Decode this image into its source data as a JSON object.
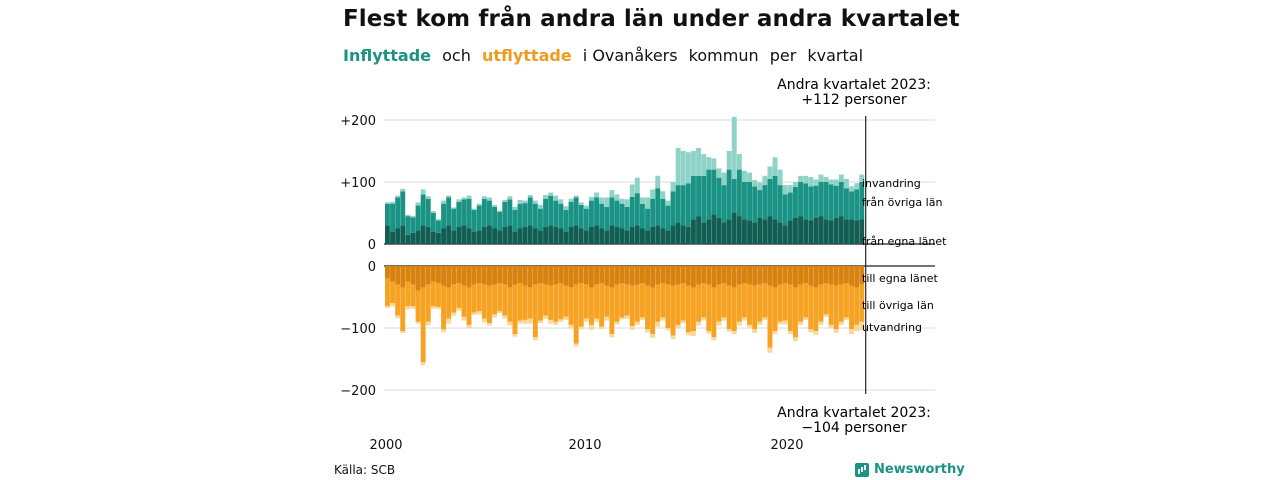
{
  "title": "Flest kom från andra län under andra kvartalet",
  "subtitle": {
    "part1": "Inflyttade",
    "part2": "och",
    "part3": "utflyttade",
    "part4": "i Ovanåkers",
    "part5": "kommun",
    "part6": "per",
    "part7": "kvartal"
  },
  "source": "Källa: SCB",
  "brand": "Newsworthy",
  "colors": {
    "in_own": "#125e52",
    "in_other": "#1a9384",
    "in_abroad": "#8fd3c8",
    "out_own": "#d9820f",
    "out_other": "#f6a324",
    "out_abroad": "#fbd79b"
  },
  "chart_data": {
    "type": "bar",
    "stacked": true,
    "x_start": "2000 Q1",
    "x_end": "2023 Q2",
    "x_ticks": [
      "2000",
      "2010",
      "2020"
    ],
    "ylim": [
      -220,
      210
    ],
    "y_ticks": [
      "+200",
      "+100",
      "0",
      "0",
      "−100",
      "−200"
    ],
    "annotations": {
      "top_label_1": "Andra kvartalet 2023:",
      "top_label_2": "+112 personer",
      "bottom_label_1": "Andra kvartalet 2023:",
      "bottom_label_2": "−104 personer"
    },
    "series_labels": {
      "in_abroad": "invandring",
      "in_other": "från övriga län",
      "in_own": "från egna länet",
      "out_own": "till egna länet",
      "out_other": "till övriga län",
      "out_abroad": "utvandring"
    },
    "inflow": {
      "own_county": [
        30,
        20,
        25,
        30,
        15,
        18,
        22,
        30,
        28,
        20,
        18,
        25,
        30,
        22,
        28,
        30,
        25,
        20,
        22,
        28,
        30,
        25,
        22,
        28,
        30,
        20,
        25,
        28,
        30,
        25,
        22,
        28,
        30,
        28,
        25,
        20,
        28,
        30,
        25,
        22,
        28,
        30,
        25,
        22,
        30,
        28,
        25,
        22,
        28,
        30,
        25,
        22,
        28,
        30,
        25,
        22,
        30,
        35,
        30,
        28,
        40,
        45,
        35,
        40,
        48,
        42,
        35,
        40,
        50,
        45,
        40,
        38,
        35,
        42,
        40,
        45,
        40,
        35,
        30,
        38,
        42,
        45,
        40,
        38,
        42,
        45,
        40,
        38,
        42,
        45,
        40,
        40,
        38,
        40
      ],
      "other_county": [
        35,
        45,
        50,
        55,
        30,
        25,
        40,
        50,
        45,
        30,
        20,
        40,
        45,
        35,
        40,
        42,
        48,
        35,
        40,
        45,
        40,
        35,
        30,
        40,
        42,
        35,
        40,
        38,
        45,
        40,
        35,
        45,
        48,
        42,
        40,
        35,
        40,
        45,
        38,
        35,
        42,
        45,
        40,
        38,
        45,
        42,
        40,
        38,
        48,
        52,
        40,
        35,
        45,
        60,
        48,
        40,
        55,
        60,
        65,
        70,
        70,
        65,
        75,
        80,
        72,
        65,
        60,
        80,
        55,
        75,
        60,
        62,
        58,
        45,
        55,
        60,
        70,
        60,
        50,
        45,
        50,
        55,
        58,
        55,
        52,
        55,
        60,
        58,
        52,
        55,
        50,
        45,
        50,
        60
      ],
      "abroad": [
        2,
        3,
        3,
        4,
        2,
        2,
        5,
        8,
        4,
        3,
        2,
        5,
        3,
        2,
        4,
        3,
        5,
        2,
        3,
        4,
        5,
        3,
        2,
        3,
        5,
        5,
        6,
        4,
        4,
        5,
        6,
        6,
        5,
        8,
        7,
        6,
        5,
        3,
        4,
        5,
        6,
        8,
        10,
        15,
        12,
        10,
        8,
        12,
        20,
        25,
        10,
        18,
        15,
        20,
        12,
        8,
        15,
        60,
        55,
        50,
        40,
        45,
        35,
        20,
        18,
        15,
        20,
        30,
        100,
        25,
        18,
        15,
        10,
        12,
        15,
        20,
        30,
        25,
        15,
        12,
        8,
        10,
        12,
        15,
        10,
        12,
        8,
        8,
        10,
        12,
        15,
        8,
        10,
        12
      ]
    },
    "outflow": {
      "own_county": [
        20,
        25,
        30,
        35,
        25,
        30,
        40,
        35,
        30,
        25,
        28,
        32,
        35,
        30,
        28,
        32,
        35,
        30,
        28,
        30,
        32,
        30,
        28,
        30,
        35,
        30,
        28,
        32,
        35,
        30,
        28,
        30,
        32,
        30,
        28,
        32,
        35,
        30,
        28,
        30,
        35,
        30,
        28,
        32,
        35,
        30,
        28,
        30,
        32,
        30,
        28,
        32,
        35,
        30,
        28,
        30,
        32,
        30,
        28,
        32,
        35,
        30,
        28,
        30,
        35,
        30,
        28,
        32,
        35,
        30,
        28,
        30,
        32,
        30,
        28,
        32,
        35,
        30,
        28,
        30,
        35,
        30,
        28,
        32,
        35,
        30,
        28,
        30,
        32,
        30,
        28,
        32,
        35,
        30
      ],
      "other_county": [
        45,
        35,
        50,
        70,
        40,
        35,
        50,
        120,
        60,
        40,
        38,
        70,
        50,
        45,
        40,
        50,
        60,
        45,
        45,
        55,
        60,
        48,
        45,
        50,
        55,
        80,
        60,
        55,
        50,
        85,
        60,
        50,
        55,
        60,
        58,
        50,
        60,
        95,
        70,
        55,
        60,
        55,
        70,
        50,
        75,
        60,
        55,
        50,
        65,
        60,
        55,
        70,
        75,
        60,
        55,
        70,
        80,
        65,
        60,
        75,
        70,
        60,
        55,
        75,
        80,
        60,
        55,
        70,
        70,
        60,
        55,
        65,
        70,
        60,
        55,
        100,
        70,
        60,
        60,
        75,
        80,
        60,
        55,
        70,
        70,
        60,
        50,
        65,
        70,
        60,
        55,
        70,
        60,
        60
      ],
      "abroad": [
        3,
        5,
        4,
        3,
        5,
        4,
        3,
        5,
        6,
        4,
        3,
        5,
        8,
        5,
        4,
        6,
        5,
        4,
        5,
        6,
        4,
        5,
        3,
        5,
        6,
        4,
        5,
        6,
        8,
        5,
        4,
        5,
        6,
        5,
        4,
        5,
        6,
        5,
        4,
        5,
        8,
        5,
        4,
        6,
        5,
        4,
        3,
        5,
        6,
        5,
        4,
        5,
        6,
        8,
        5,
        4,
        6,
        5,
        4,
        5,
        8,
        6,
        5,
        4,
        5,
        6,
        5,
        4,
        5,
        6,
        5,
        4,
        6,
        5,
        4,
        8,
        5,
        4,
        6,
        5,
        6,
        5,
        4,
        5,
        6,
        5,
        4,
        5,
        6,
        5,
        4,
        8,
        10,
        14
      ]
    }
  }
}
